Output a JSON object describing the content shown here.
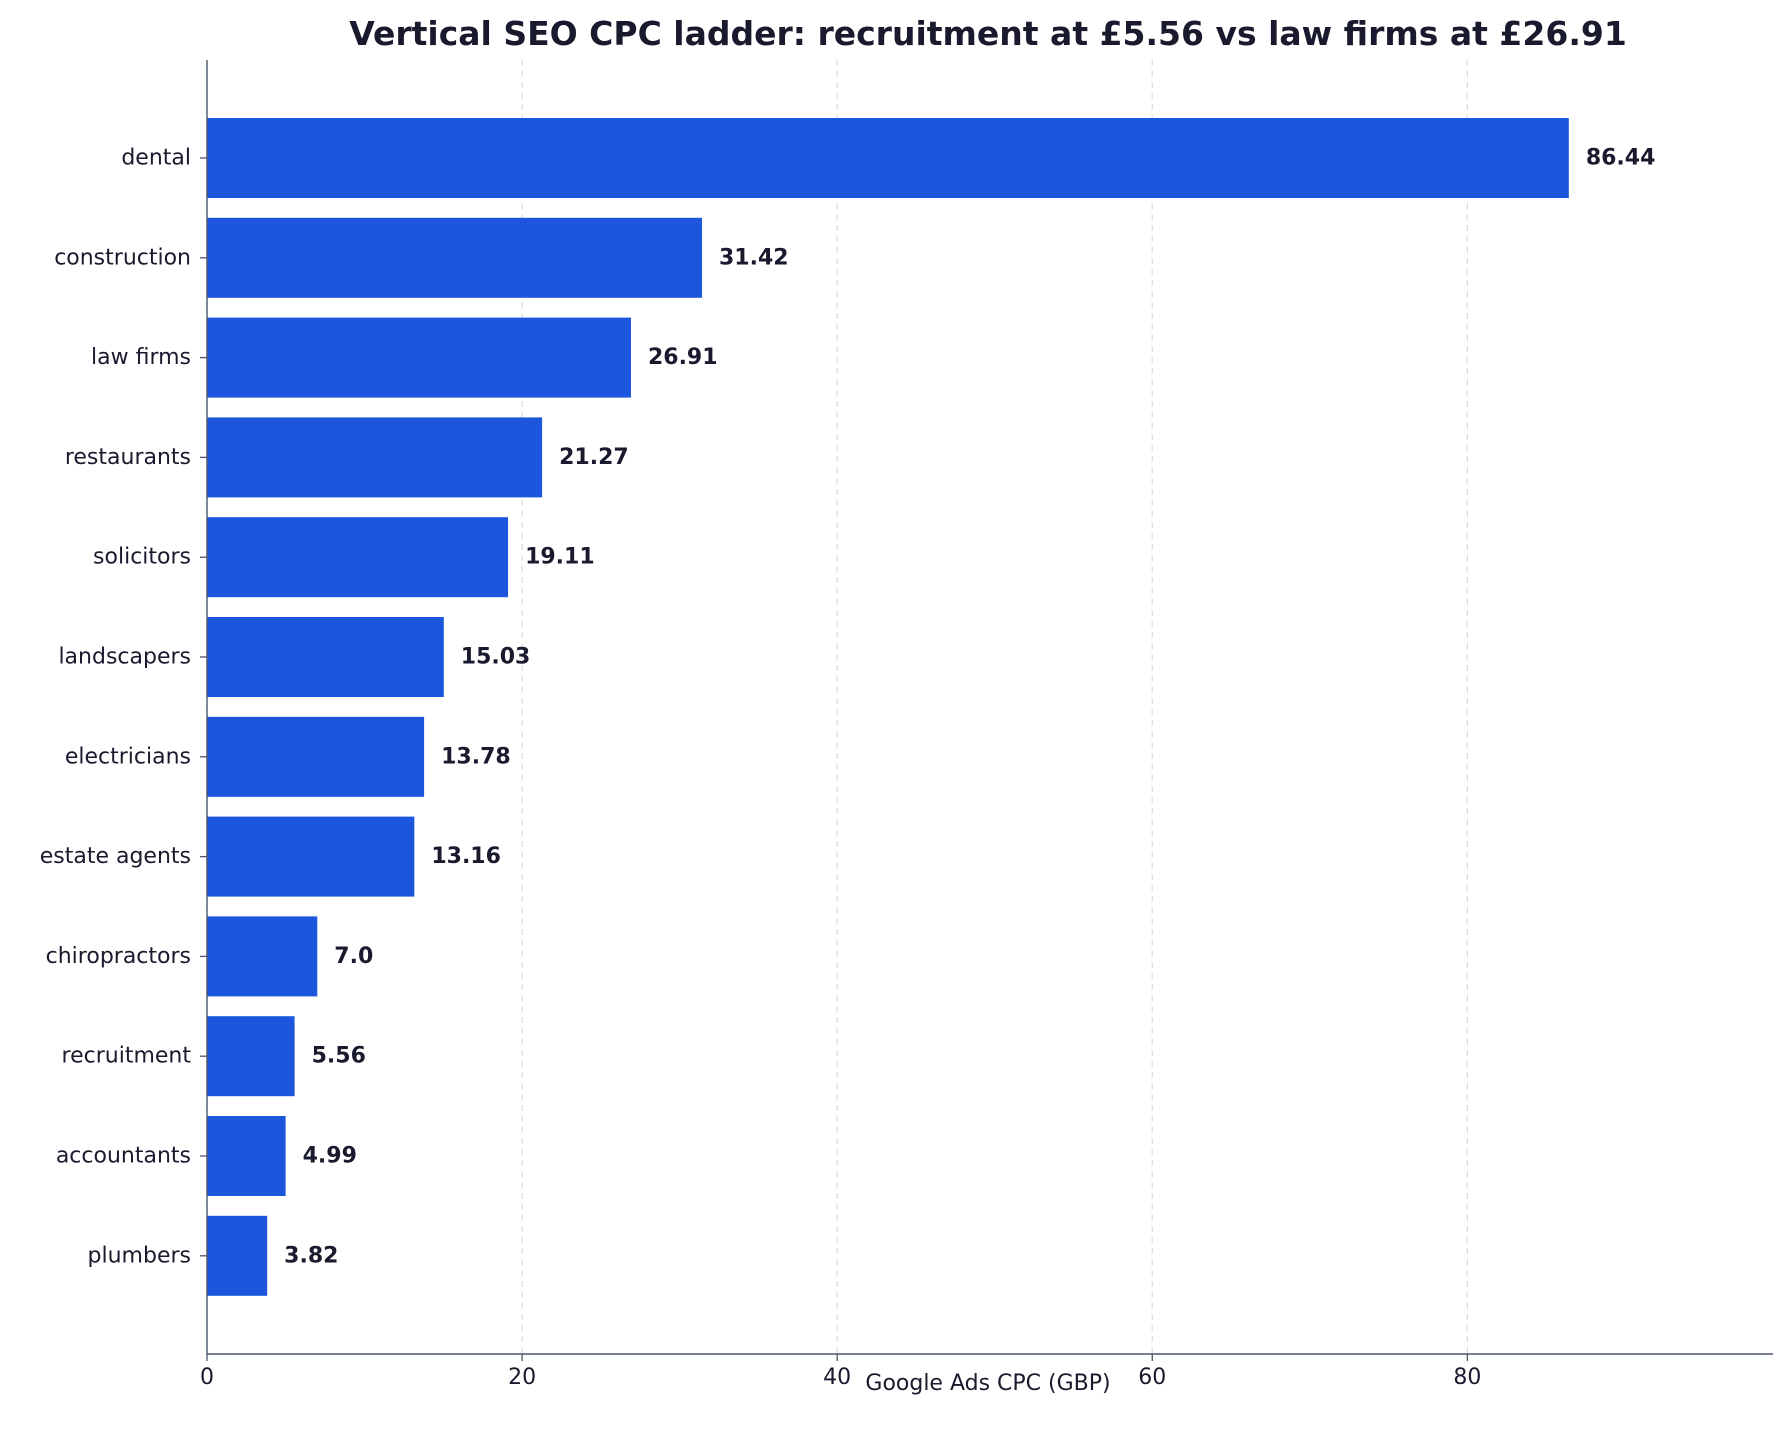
{
  "chart_data": {
    "type": "bar",
    "orientation": "horizontal",
    "title": "Vertical SEO CPC ladder: recruitment at £5.56 vs law firms at £26.91",
    "xlabel": "Google Ads CPC (GBP)",
    "ylabel": "",
    "categories": [
      "dental",
      "construction",
      "law firms",
      "restaurants",
      "solicitors",
      "landscapers",
      "electricians",
      "estate agents",
      "chiropractors",
      "recruitment",
      "accountants",
      "plumbers"
    ],
    "values": [
      86.44,
      31.42,
      26.91,
      21.27,
      19.11,
      15.03,
      13.78,
      13.16,
      7.0,
      5.56,
      4.99,
      3.82
    ],
    "value_labels": [
      "86.44",
      "31.42",
      "26.91",
      "21.27",
      "19.11",
      "15.03",
      "13.78",
      "13.16",
      "7.0",
      "5.56",
      "4.99",
      "3.82"
    ],
    "xlim": [
      0,
      99.4
    ],
    "xticks": [
      0,
      20,
      40,
      60,
      80
    ],
    "xtick_labels": [
      "0",
      "20",
      "40",
      "60",
      "80"
    ],
    "grid": "x-dashed",
    "legend": "none",
    "colors": {
      "bar": "#1c56dc",
      "text": "#1a1a2e",
      "axis": "#4a5568",
      "grid": "#dddddd"
    }
  }
}
